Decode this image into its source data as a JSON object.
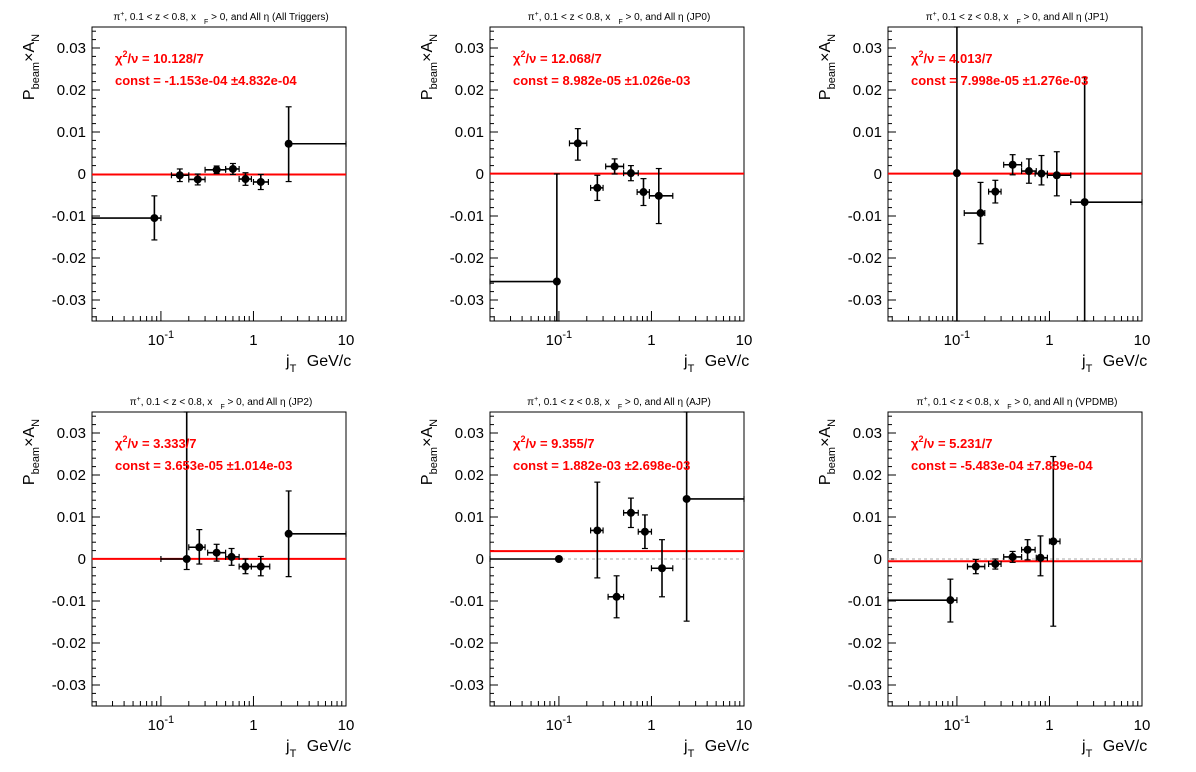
{
  "colors": {
    "fit": "#ff0000",
    "points": "#000000",
    "zero_line": "#aaaaaa",
    "stat_text": "#ff0000"
  },
  "chart_data": [
    {
      "type": "scatter",
      "title": "π⁺, 0.1 < z < 0.8, x_F > 0, and All η (All Triggers)",
      "title_parts": {
        "pre": "π",
        "pre_sup": "+",
        "mid": ", 0.1 < z < 0.8, x",
        "mid_sub": "F",
        "post": " > 0, and All  η (All Triggers)"
      },
      "xlabel": {
        "main": "j",
        "sub": "T",
        "post": " GeV/c"
      },
      "ylabel": {
        "pre": "P",
        "sub": "beam",
        "post": "×A",
        "post_sub": "N"
      },
      "xscale": "log",
      "xlim": [
        0.018,
        10
      ],
      "ylim": [
        -0.035,
        0.035
      ],
      "x_ticks": [
        {
          "value": 0.1,
          "base": "10",
          "exp": "-1"
        },
        {
          "value": 1,
          "base": "1",
          "exp": ""
        },
        {
          "value": 10,
          "base": "10",
          "exp": ""
        }
      ],
      "y_ticks": [
        {
          "value": 0.03,
          "label": "0.03"
        },
        {
          "value": 0.02,
          "label": "0.02"
        },
        {
          "value": 0.01,
          "label": "0.01"
        },
        {
          "value": 0,
          "label": "0"
        },
        {
          "value": -0.01,
          "label": "-0.01"
        },
        {
          "value": -0.02,
          "label": "-0.02"
        },
        {
          "value": -0.03,
          "label": "-0.03"
        }
      ],
      "stats": {
        "chi2_label": "χ",
        "chi2_sup": "2",
        "chi2_rest": "/ν = 10.128/7",
        "const_label": "const = -1.153e-04  ±4.832e-04"
      },
      "fit_value": -0.0001153,
      "points": [
        {
          "x": 0.085,
          "y": -0.0105,
          "xlo": 0.018,
          "xhi": 0.1,
          "ylo": -0.0157,
          "yhi": -0.0052
        },
        {
          "x": 0.16,
          "y": -0.0003,
          "xlo": 0.13,
          "xhi": 0.2,
          "ylo": -0.0018,
          "yhi": 0.0012
        },
        {
          "x": 0.25,
          "y": -0.0013,
          "xlo": 0.2,
          "xhi": 0.3,
          "ylo": -0.0026,
          "yhi": 0.0
        },
        {
          "x": 0.4,
          "y": 0.001,
          "xlo": 0.3,
          "xhi": 0.5,
          "ylo": 0.0001,
          "yhi": 0.0019
        },
        {
          "x": 0.6,
          "y": 0.0012,
          "xlo": 0.5,
          "xhi": 0.7,
          "ylo": -0.0001,
          "yhi": 0.0025
        },
        {
          "x": 0.82,
          "y": -0.0012,
          "xlo": 0.7,
          "xhi": 0.95,
          "ylo": -0.0027,
          "yhi": 0.0003
        },
        {
          "x": 1.2,
          "y": -0.0019,
          "xlo": 1.0,
          "xhi": 1.45,
          "ylo": -0.0037,
          "yhi": -0.0001
        },
        {
          "x": 2.4,
          "y": 0.0072,
          "xlo": 2.4,
          "xhi": 10,
          "ylo": -0.0018,
          "yhi": 0.016
        }
      ]
    },
    {
      "type": "scatter",
      "title": "π⁺, 0.1 < z < 0.8, x_F > 0, and All η (JP0)",
      "title_parts": {
        "pre": "π",
        "pre_sup": "+",
        "mid": ", 0.1 < z < 0.8, x",
        "mid_sub": "F",
        "post": " > 0, and All  η (JP0)"
      },
      "xlabel": {
        "main": "j",
        "sub": "T",
        "post": " GeV/c"
      },
      "ylabel": {
        "pre": "P",
        "sub": "beam",
        "post": "×A",
        "post_sub": "N"
      },
      "xscale": "log",
      "xlim": [
        0.018,
        10
      ],
      "ylim": [
        -0.035,
        0.035
      ],
      "x_ticks": [
        {
          "value": 0.1,
          "base": "10",
          "exp": "-1"
        },
        {
          "value": 1,
          "base": "1",
          "exp": ""
        },
        {
          "value": 10,
          "base": "10",
          "exp": ""
        }
      ],
      "y_ticks": [
        {
          "value": 0.03,
          "label": "0.03"
        },
        {
          "value": 0.02,
          "label": "0.02"
        },
        {
          "value": 0.01,
          "label": "0.01"
        },
        {
          "value": 0,
          "label": "0"
        },
        {
          "value": -0.01,
          "label": "-0.01"
        },
        {
          "value": -0.02,
          "label": "-0.02"
        },
        {
          "value": -0.03,
          "label": "-0.03"
        }
      ],
      "stats": {
        "chi2_label": "χ",
        "chi2_sup": "2",
        "chi2_rest": "/ν = 12.068/7",
        "const_label": "const = 8.982e-05  ±1.026e-03"
      },
      "fit_value": 8.982e-05,
      "points": [
        {
          "x": 0.095,
          "y": -0.0256,
          "xlo": 0.018,
          "xhi": 0.095,
          "ylo": -0.035,
          "yhi": 0.0
        },
        {
          "x": 0.16,
          "y": 0.0073,
          "xlo": 0.13,
          "xhi": 0.2,
          "ylo": 0.0033,
          "yhi": 0.0108
        },
        {
          "x": 0.26,
          "y": -0.0033,
          "xlo": 0.22,
          "xhi": 0.3,
          "ylo": -0.0063,
          "yhi": -0.0003
        },
        {
          "x": 0.4,
          "y": 0.0018,
          "xlo": 0.32,
          "xhi": 0.5,
          "ylo": 0.0,
          "yhi": 0.0036
        },
        {
          "x": 0.6,
          "y": 0.0002,
          "xlo": 0.5,
          "xhi": 0.72,
          "ylo": -0.0016,
          "yhi": 0.002
        },
        {
          "x": 0.82,
          "y": -0.0043,
          "xlo": 0.7,
          "xhi": 0.95,
          "ylo": -0.0075,
          "yhi": -0.0011
        },
        {
          "x": 1.2,
          "y": -0.0052,
          "xlo": 0.95,
          "xhi": 1.7,
          "ylo": -0.0118,
          "yhi": 0.0013
        }
      ]
    },
    {
      "type": "scatter",
      "title": "π⁺, 0.1 < z < 0.8, x_F > 0, and All η (JP1)",
      "title_parts": {
        "pre": "π",
        "pre_sup": "+",
        "mid": ", 0.1 < z < 0.8, x",
        "mid_sub": "F",
        "post": " > 0, and All  η (JP1)"
      },
      "xlabel": {
        "main": "j",
        "sub": "T",
        "post": " GeV/c"
      },
      "ylabel": {
        "pre": "P",
        "sub": "beam",
        "post": "×A",
        "post_sub": "N"
      },
      "xscale": "log",
      "xlim": [
        0.018,
        10
      ],
      "ylim": [
        -0.035,
        0.035
      ],
      "x_ticks": [
        {
          "value": 0.1,
          "base": "10",
          "exp": "-1"
        },
        {
          "value": 1,
          "base": "1",
          "exp": ""
        },
        {
          "value": 10,
          "base": "10",
          "exp": ""
        }
      ],
      "y_ticks": [
        {
          "value": 0.03,
          "label": "0.03"
        },
        {
          "value": 0.02,
          "label": "0.02"
        },
        {
          "value": 0.01,
          "label": "0.01"
        },
        {
          "value": 0,
          "label": "0"
        },
        {
          "value": -0.01,
          "label": "-0.01"
        },
        {
          "value": -0.02,
          "label": "-0.02"
        },
        {
          "value": -0.03,
          "label": "-0.03"
        }
      ],
      "stats": {
        "chi2_label": "χ",
        "chi2_sup": "2",
        "chi2_rest": "/ν = 4.013/7",
        "const_label": "const = 7.998e-05  ±1.276e-03"
      },
      "fit_value": 7.998e-05,
      "points": [
        {
          "x": 0.1,
          "y": 0.0002,
          "xlo": 0.1,
          "xhi": 0.1,
          "ylo": -0.035,
          "yhi": 0.035
        },
        {
          "x": 0.18,
          "y": -0.0093,
          "xlo": 0.12,
          "xhi": 0.2,
          "ylo": -0.0166,
          "yhi": -0.002
        },
        {
          "x": 0.26,
          "y": -0.0042,
          "xlo": 0.22,
          "xhi": 0.3,
          "ylo": -0.0069,
          "yhi": -0.0015
        },
        {
          "x": 0.4,
          "y": 0.0022,
          "xlo": 0.32,
          "xhi": 0.5,
          "ylo": -0.0002,
          "yhi": 0.0046
        },
        {
          "x": 0.6,
          "y": 0.0007,
          "xlo": 0.5,
          "xhi": 0.72,
          "ylo": -0.0022,
          "yhi": 0.0036
        },
        {
          "x": 0.82,
          "y": 0.0001,
          "xlo": 0.7,
          "xhi": 0.95,
          "ylo": -0.0026,
          "yhi": 0.0044
        },
        {
          "x": 1.2,
          "y": -0.0003,
          "xlo": 0.95,
          "xhi": 1.7,
          "ylo": -0.0052,
          "yhi": 0.0053
        },
        {
          "x": 2.4,
          "y": -0.0067,
          "xlo": 1.7,
          "xhi": 10,
          "ylo": -0.035,
          "yhi": 0.023
        }
      ]
    },
    {
      "type": "scatter",
      "title": "π⁺, 0.1 < z < 0.8, x_F > 0, and All η (JP2)",
      "title_parts": {
        "pre": "π",
        "pre_sup": "+",
        "mid": ", 0.1 < z < 0.8, x",
        "mid_sub": "F",
        "post": " > 0, and All  η (JP2)"
      },
      "xlabel": {
        "main": "j",
        "sub": "T",
        "post": " GeV/c"
      },
      "ylabel": {
        "pre": "P",
        "sub": "beam",
        "post": "×A",
        "post_sub": "N"
      },
      "xscale": "log",
      "xlim": [
        0.018,
        10
      ],
      "ylim": [
        -0.035,
        0.035
      ],
      "x_ticks": [
        {
          "value": 0.1,
          "base": "10",
          "exp": "-1"
        },
        {
          "value": 1,
          "base": "1",
          "exp": ""
        },
        {
          "value": 10,
          "base": "10",
          "exp": ""
        }
      ],
      "y_ticks": [
        {
          "value": 0.03,
          "label": "0.03"
        },
        {
          "value": 0.02,
          "label": "0.02"
        },
        {
          "value": 0.01,
          "label": "0.01"
        },
        {
          "value": 0,
          "label": "0"
        },
        {
          "value": -0.01,
          "label": "-0.01"
        },
        {
          "value": -0.02,
          "label": "-0.02"
        },
        {
          "value": -0.03,
          "label": "-0.03"
        }
      ],
      "stats": {
        "chi2_label": "χ",
        "chi2_sup": "2",
        "chi2_rest": "/ν = 3.333/7",
        "const_label": "const = 3.653e-05  ±1.014e-03"
      },
      "fit_value": 3.653e-05,
      "points": [
        {
          "x": 0.19,
          "y": 0.0,
          "xlo": 0.1,
          "xhi": 0.19,
          "ylo": -0.0025,
          "yhi": 0.035
        },
        {
          "x": 0.26,
          "y": 0.0028,
          "xlo": 0.2,
          "xhi": 0.3,
          "ylo": -0.0012,
          "yhi": 0.007
        },
        {
          "x": 0.4,
          "y": 0.0015,
          "xlo": 0.32,
          "xhi": 0.5,
          "ylo": -0.0005,
          "yhi": 0.0035
        },
        {
          "x": 0.58,
          "y": 0.0005,
          "xlo": 0.5,
          "xhi": 0.7,
          "ylo": -0.0015,
          "yhi": 0.0025
        },
        {
          "x": 0.82,
          "y": -0.0018,
          "xlo": 0.7,
          "xhi": 0.95,
          "ylo": -0.0035,
          "yhi": 0.0
        },
        {
          "x": 1.2,
          "y": -0.0018,
          "xlo": 0.95,
          "xhi": 1.5,
          "ylo": -0.004,
          "yhi": 0.0006
        },
        {
          "x": 2.4,
          "y": 0.006,
          "xlo": 2.4,
          "xhi": 10,
          "ylo": -0.0042,
          "yhi": 0.0162
        }
      ]
    },
    {
      "type": "scatter",
      "title": "π⁺, 0.1 < z < 0.8, x_F > 0, and All η (AJP)",
      "title_parts": {
        "pre": "π",
        "pre_sup": "+",
        "mid": ", 0.1 < z < 0.8, x",
        "mid_sub": "F",
        "post": " > 0, and All  η (AJP)"
      },
      "xlabel": {
        "main": "j",
        "sub": "T",
        "post": " GeV/c"
      },
      "ylabel": {
        "pre": "P",
        "sub": "beam",
        "post": "×A",
        "post_sub": "N"
      },
      "xscale": "log",
      "xlim": [
        0.018,
        10
      ],
      "ylim": [
        -0.035,
        0.035
      ],
      "x_ticks": [
        {
          "value": 0.1,
          "base": "10",
          "exp": "-1"
        },
        {
          "value": 1,
          "base": "1",
          "exp": ""
        },
        {
          "value": 10,
          "base": "10",
          "exp": ""
        }
      ],
      "y_ticks": [
        {
          "value": 0.03,
          "label": "0.03"
        },
        {
          "value": 0.02,
          "label": "0.02"
        },
        {
          "value": 0.01,
          "label": "0.01"
        },
        {
          "value": 0,
          "label": "0"
        },
        {
          "value": -0.01,
          "label": "-0.01"
        },
        {
          "value": -0.02,
          "label": "-0.02"
        },
        {
          "value": -0.03,
          "label": "-0.03"
        }
      ],
      "stats": {
        "chi2_label": "χ",
        "chi2_sup": "2",
        "chi2_rest": "/ν = 9.355/7",
        "const_label": "const = 1.882e-03  ±2.698e-03"
      },
      "fit_value": 0.001882,
      "points": [
        {
          "x": 0.1,
          "y": 0.0,
          "xlo": 0.018,
          "xhi": 0.1,
          "ylo": 0.0,
          "yhi": 0.0
        },
        {
          "x": 0.26,
          "y": 0.0068,
          "xlo": 0.22,
          "xhi": 0.3,
          "ylo": -0.0045,
          "yhi": 0.0183
        },
        {
          "x": 0.42,
          "y": -0.009,
          "xlo": 0.34,
          "xhi": 0.5,
          "ylo": -0.014,
          "yhi": -0.004
        },
        {
          "x": 0.6,
          "y": 0.011,
          "xlo": 0.5,
          "xhi": 0.72,
          "ylo": 0.0075,
          "yhi": 0.0145
        },
        {
          "x": 0.85,
          "y": 0.0065,
          "xlo": 0.72,
          "xhi": 1.0,
          "ylo": 0.0025,
          "yhi": 0.0105
        },
        {
          "x": 1.3,
          "y": -0.0022,
          "xlo": 1.0,
          "xhi": 1.7,
          "ylo": -0.009,
          "yhi": 0.0046
        },
        {
          "x": 2.4,
          "y": 0.0143,
          "xlo": 2.4,
          "xhi": 10,
          "ylo": -0.0148,
          "yhi": 0.035
        }
      ]
    },
    {
      "type": "scatter",
      "title": "π⁺, 0.1 < z < 0.8, x_F > 0, and All η (VPDMB)",
      "title_parts": {
        "pre": "π",
        "pre_sup": "+",
        "mid": ", 0.1 < z < 0.8, x",
        "mid_sub": "F",
        "post": " > 0, and All  η (VPDMB)"
      },
      "xlabel": {
        "main": "j",
        "sub": "T",
        "post": " GeV/c"
      },
      "ylabel": {
        "pre": "P",
        "sub": "beam",
        "post": "×A",
        "post_sub": "N"
      },
      "xscale": "log",
      "xlim": [
        0.018,
        10
      ],
      "ylim": [
        -0.035,
        0.035
      ],
      "x_ticks": [
        {
          "value": 0.1,
          "base": "10",
          "exp": "-1"
        },
        {
          "value": 1,
          "base": "1",
          "exp": ""
        },
        {
          "value": 10,
          "base": "10",
          "exp": ""
        }
      ],
      "y_ticks": [
        {
          "value": 0.03,
          "label": "0.03"
        },
        {
          "value": 0.02,
          "label": "0.02"
        },
        {
          "value": 0.01,
          "label": "0.01"
        },
        {
          "value": 0,
          "label": "0"
        },
        {
          "value": -0.01,
          "label": "-0.01"
        },
        {
          "value": -0.02,
          "label": "-0.02"
        },
        {
          "value": -0.03,
          "label": "-0.03"
        }
      ],
      "stats": {
        "chi2_label": "χ",
        "chi2_sup": "2",
        "chi2_rest": "/ν = 5.231/7",
        "const_label": "const = -5.483e-04  ±7.889e-04"
      },
      "fit_value": -0.0005483,
      "points": [
        {
          "x": 0.085,
          "y": -0.0098,
          "xlo": 0.018,
          "xhi": 0.1,
          "ylo": -0.015,
          "yhi": -0.0048
        },
        {
          "x": 0.16,
          "y": -0.0018,
          "xlo": 0.13,
          "xhi": 0.2,
          "ylo": -0.0035,
          "yhi": -0.0001
        },
        {
          "x": 0.26,
          "y": -0.0012,
          "xlo": 0.22,
          "xhi": 0.3,
          "ylo": -0.0024,
          "yhi": 0.0
        },
        {
          "x": 0.4,
          "y": 0.0005,
          "xlo": 0.32,
          "xhi": 0.5,
          "ylo": -0.0008,
          "yhi": 0.0018
        },
        {
          "x": 0.58,
          "y": 0.0022,
          "xlo": 0.5,
          "xhi": 0.7,
          "ylo": -0.0002,
          "yhi": 0.0046
        },
        {
          "x": 0.8,
          "y": 0.0003,
          "xlo": 0.72,
          "xhi": 0.95,
          "ylo": -0.004,
          "yhi": 0.0055
        },
        {
          "x": 1.1,
          "y": 0.0042,
          "xlo": 1.0,
          "xhi": 1.3,
          "ylo": -0.016,
          "yhi": 0.0244
        }
      ]
    }
  ]
}
